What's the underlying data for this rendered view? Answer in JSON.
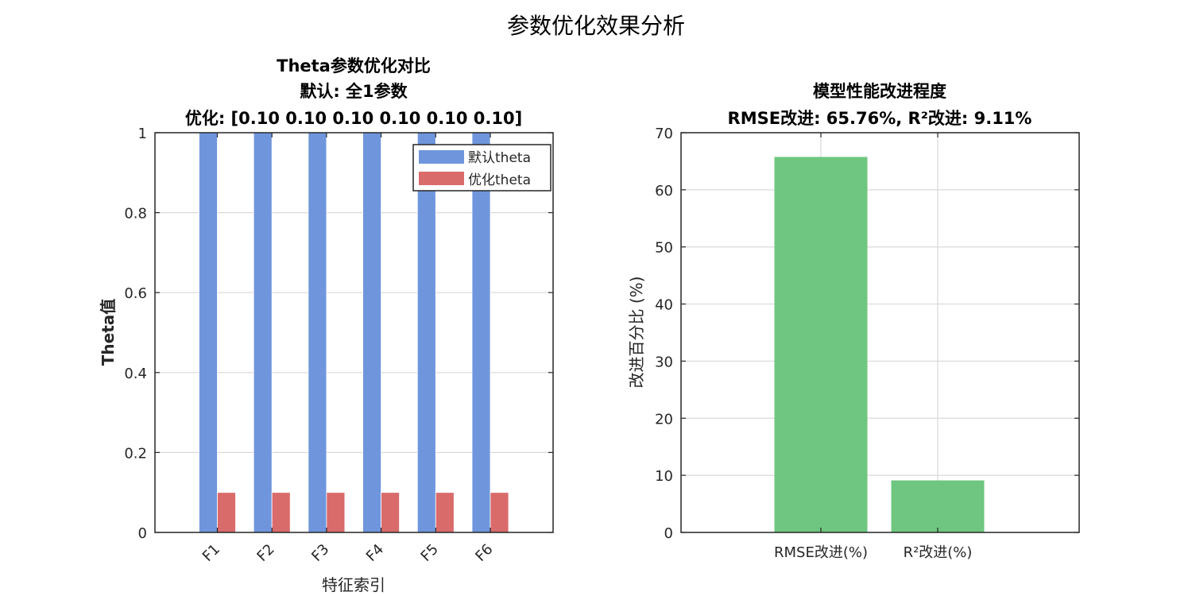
{
  "figure": {
    "title": "参数优化效果分析"
  },
  "colors": {
    "default_bar": "#6f96dc",
    "optimized_bar": "#d96b6b",
    "improvement_bar": "#6cc57d",
    "axis": "#262626",
    "grid": "#d9d9d9"
  },
  "chart_data": [
    {
      "type": "bar",
      "title_lines": [
        "Theta参数优化对比",
        "默认: 全1参数",
        "优化: [0.10 0.10 0.10 0.10 0.10 0.10]"
      ],
      "xlabel": "特征索引",
      "ylabel": "Theta值",
      "categories": [
        "F1",
        "F2",
        "F3",
        "F4",
        "F5",
        "F6"
      ],
      "series": [
        {
          "name": "默认theta",
          "values": [
            1,
            1,
            1,
            1,
            1,
            1
          ]
        },
        {
          "name": "优化theta",
          "values": [
            0.1,
            0.1,
            0.1,
            0.1,
            0.1,
            0.1
          ]
        }
      ],
      "ylim": [
        0,
        1
      ],
      "yticks": [
        "0",
        "0.2",
        "0.4",
        "0.6",
        "0.8",
        "1"
      ],
      "grid": true,
      "legend": "top-right"
    },
    {
      "type": "bar",
      "title_lines": [
        "模型性能改进程度",
        "RMSE改进: 65.76%, R²改进: 9.11%"
      ],
      "xlabel": "",
      "ylabel": "改进百分比 (%)",
      "categories": [
        "RMSE改进(%)",
        "R²改进(%)"
      ],
      "values": [
        65.76,
        9.11
      ],
      "ylim": [
        0,
        70
      ],
      "yticks": [
        "0",
        "10",
        "20",
        "30",
        "40",
        "50",
        "60",
        "70"
      ],
      "grid": true
    }
  ]
}
